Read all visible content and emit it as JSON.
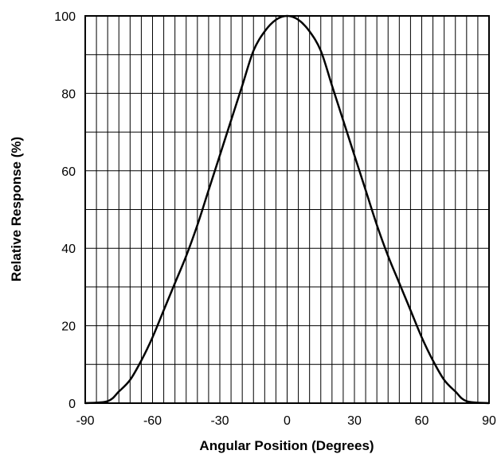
{
  "chart_data": {
    "type": "line",
    "xlabel": "Angular Position (Degrees)",
    "ylabel": "Relative Response (%)",
    "xlim": [
      -90,
      90
    ],
    "ylim": [
      0,
      100
    ],
    "x_ticks": [
      -90,
      -60,
      -30,
      0,
      30,
      60,
      90
    ],
    "y_ticks": [
      0,
      20,
      40,
      60,
      80,
      100
    ],
    "x_tick_labels": [
      "-90",
      "-60",
      "-30",
      "0",
      "30",
      "60",
      "90"
    ],
    "y_tick_labels": [
      "0",
      "20",
      "40",
      "60",
      "80",
      "100"
    ],
    "grid": true,
    "x_grid_step": 5,
    "y_grid_step": 10,
    "series": [
      {
        "x": [
          -90,
          -80,
          -75,
          -70,
          -65,
          -60,
          -55,
          -50,
          -45,
          -40,
          -35,
          -30,
          -25,
          -20,
          -15,
          -10,
          -5,
          0,
          5,
          10,
          15,
          20,
          25,
          30,
          35,
          40,
          45,
          50,
          55,
          60,
          65,
          70,
          75,
          80,
          90
        ],
        "y": [
          0,
          0.5,
          3,
          6,
          11,
          17,
          24,
          31,
          38,
          46,
          55,
          64,
          73,
          82,
          91,
          96,
          99,
          100,
          99,
          96,
          91,
          82,
          73,
          64,
          55,
          46,
          38,
          31,
          24,
          17,
          11,
          6,
          3,
          0.5,
          0
        ]
      }
    ],
    "colors": {
      "line": "#000000",
      "grid": "#000000",
      "background": "#ffffff"
    }
  }
}
